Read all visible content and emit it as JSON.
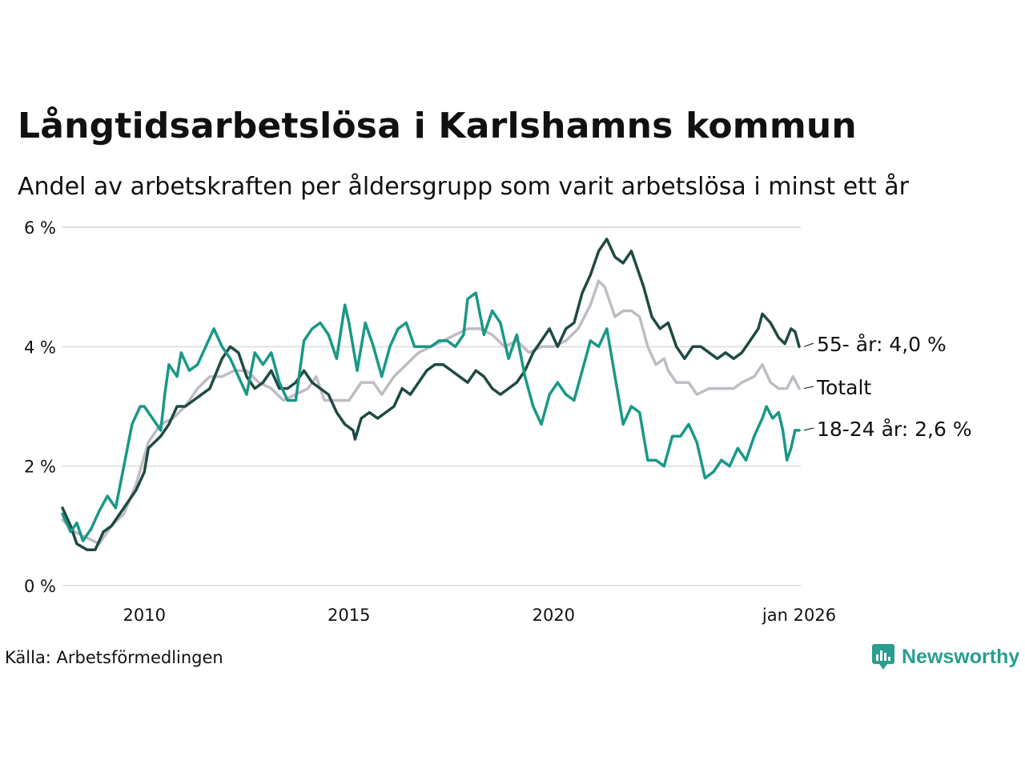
{
  "title": "Långtidsarbetslösa i Karlshamns kommun",
  "subtitle": "Andel av arbetskraften per åldersgrupp som varit arbetslösa i minst ett år",
  "source": "Källa: Arbetsförmedlingen",
  "brand": {
    "name": "Newsworthy",
    "icon": "newsworthy-logo-icon"
  },
  "colors": {
    "older": "#1f4a44",
    "total": "#bfbcc4",
    "youth": "#1a9886",
    "grid": "#e2e2e2",
    "text": "#111111"
  },
  "chart_data": {
    "type": "line",
    "title": "Långtidsarbetslösa i Karlshamns kommun",
    "x_range": [
      2008.0,
      2026.0
    ],
    "ylim": [
      0,
      6
    ],
    "grid": true,
    "y_ticks": [
      {
        "value": 0,
        "label": "0 %"
      },
      {
        "value": 2,
        "label": "2 %"
      },
      {
        "value": 4,
        "label": "4 %"
      },
      {
        "value": 6,
        "label": "6 %"
      }
    ],
    "x_ticks": [
      {
        "value": 2010,
        "label": "2010"
      },
      {
        "value": 2015,
        "label": "2015"
      },
      {
        "value": 2020,
        "label": "2020"
      },
      {
        "value": 2026,
        "label": "jan 2026"
      }
    ],
    "series": [
      {
        "key": "total",
        "name": "Totalt",
        "label": "Totalt",
        "points": [
          [
            2008.0,
            1.1
          ],
          [
            2008.3,
            0.9
          ],
          [
            2008.6,
            0.8
          ],
          [
            2008.9,
            0.7
          ],
          [
            2009.2,
            1.0
          ],
          [
            2009.5,
            1.2
          ],
          [
            2009.8,
            1.7
          ],
          [
            2010.1,
            2.4
          ],
          [
            2010.4,
            2.7
          ],
          [
            2010.7,
            2.8
          ],
          [
            2011.0,
            3.0
          ],
          [
            2011.3,
            3.3
          ],
          [
            2011.6,
            3.5
          ],
          [
            2011.9,
            3.5
          ],
          [
            2012.2,
            3.6
          ],
          [
            2012.5,
            3.6
          ],
          [
            2012.8,
            3.4
          ],
          [
            2013.1,
            3.3
          ],
          [
            2013.4,
            3.1
          ],
          [
            2013.7,
            3.2
          ],
          [
            2014.0,
            3.3
          ],
          [
            2014.2,
            3.5
          ],
          [
            2014.4,
            3.1
          ],
          [
            2014.7,
            3.1
          ],
          [
            2015.0,
            3.1
          ],
          [
            2015.3,
            3.4
          ],
          [
            2015.6,
            3.4
          ],
          [
            2015.8,
            3.2
          ],
          [
            2016.1,
            3.5
          ],
          [
            2016.4,
            3.7
          ],
          [
            2016.7,
            3.9
          ],
          [
            2017.0,
            4.0
          ],
          [
            2017.3,
            4.1
          ],
          [
            2017.6,
            4.2
          ],
          [
            2017.9,
            4.3
          ],
          [
            2018.2,
            4.3
          ],
          [
            2018.5,
            4.2
          ],
          [
            2018.8,
            4.0
          ],
          [
            2019.1,
            4.1
          ],
          [
            2019.4,
            3.9
          ],
          [
            2019.7,
            4.0
          ],
          [
            2020.0,
            4.0
          ],
          [
            2020.3,
            4.1
          ],
          [
            2020.6,
            4.3
          ],
          [
            2020.9,
            4.7
          ],
          [
            2021.1,
            5.1
          ],
          [
            2021.25,
            5.0
          ],
          [
            2021.5,
            4.5
          ],
          [
            2021.7,
            4.6
          ],
          [
            2021.9,
            4.6
          ],
          [
            2022.1,
            4.5
          ],
          [
            2022.3,
            4.0
          ],
          [
            2022.5,
            3.7
          ],
          [
            2022.7,
            3.8
          ],
          [
            2022.8,
            3.6
          ],
          [
            2023.0,
            3.4
          ],
          [
            2023.3,
            3.4
          ],
          [
            2023.5,
            3.2
          ],
          [
            2023.8,
            3.3
          ],
          [
            2024.1,
            3.3
          ],
          [
            2024.4,
            3.3
          ],
          [
            2024.6,
            3.4
          ],
          [
            2024.9,
            3.5
          ],
          [
            2025.1,
            3.7
          ],
          [
            2025.3,
            3.4
          ],
          [
            2025.5,
            3.3
          ],
          [
            2025.7,
            3.3
          ],
          [
            2025.85,
            3.5
          ],
          [
            2026.0,
            3.3
          ]
        ]
      },
      {
        "key": "older",
        "name": "55- år",
        "label": "55- år: 4,0 %",
        "latest": 4.0,
        "points": [
          [
            2008.0,
            1.3
          ],
          [
            2008.2,
            1.0
          ],
          [
            2008.35,
            0.7
          ],
          [
            2008.6,
            0.6
          ],
          [
            2008.8,
            0.6
          ],
          [
            2009.0,
            0.9
          ],
          [
            2009.2,
            1.0
          ],
          [
            2009.5,
            1.3
          ],
          [
            2009.8,
            1.6
          ],
          [
            2010.0,
            1.9
          ],
          [
            2010.1,
            2.3
          ],
          [
            2010.4,
            2.5
          ],
          [
            2010.6,
            2.7
          ],
          [
            2010.8,
            3.0
          ],
          [
            2011.0,
            3.0
          ],
          [
            2011.2,
            3.1
          ],
          [
            2011.4,
            3.2
          ],
          [
            2011.6,
            3.3
          ],
          [
            2011.9,
            3.8
          ],
          [
            2012.1,
            4.0
          ],
          [
            2012.3,
            3.9
          ],
          [
            2012.5,
            3.5
          ],
          [
            2012.7,
            3.3
          ],
          [
            2012.9,
            3.4
          ],
          [
            2013.1,
            3.6
          ],
          [
            2013.3,
            3.3
          ],
          [
            2013.5,
            3.3
          ],
          [
            2013.7,
            3.4
          ],
          [
            2013.9,
            3.6
          ],
          [
            2014.1,
            3.4
          ],
          [
            2014.3,
            3.3
          ],
          [
            2014.5,
            3.2
          ],
          [
            2014.7,
            2.9
          ],
          [
            2014.9,
            2.7
          ],
          [
            2015.1,
            2.6
          ],
          [
            2015.15,
            2.45
          ],
          [
            2015.3,
            2.8
          ],
          [
            2015.5,
            2.9
          ],
          [
            2015.7,
            2.8
          ],
          [
            2015.9,
            2.9
          ],
          [
            2016.1,
            3.0
          ],
          [
            2016.3,
            3.3
          ],
          [
            2016.5,
            3.2
          ],
          [
            2016.7,
            3.4
          ],
          [
            2016.9,
            3.6
          ],
          [
            2017.1,
            3.7
          ],
          [
            2017.3,
            3.7
          ],
          [
            2017.5,
            3.6
          ],
          [
            2017.7,
            3.5
          ],
          [
            2017.9,
            3.4
          ],
          [
            2018.1,
            3.6
          ],
          [
            2018.3,
            3.5
          ],
          [
            2018.5,
            3.3
          ],
          [
            2018.7,
            3.2
          ],
          [
            2018.9,
            3.3
          ],
          [
            2019.1,
            3.4
          ],
          [
            2019.3,
            3.6
          ],
          [
            2019.5,
            3.9
          ],
          [
            2019.7,
            4.1
          ],
          [
            2019.9,
            4.3
          ],
          [
            2020.1,
            4.0
          ],
          [
            2020.3,
            4.3
          ],
          [
            2020.5,
            4.4
          ],
          [
            2020.7,
            4.9
          ],
          [
            2020.9,
            5.2
          ],
          [
            2021.1,
            5.6
          ],
          [
            2021.3,
            5.8
          ],
          [
            2021.5,
            5.5
          ],
          [
            2021.7,
            5.4
          ],
          [
            2021.9,
            5.6
          ],
          [
            2022.0,
            5.4
          ],
          [
            2022.2,
            5.0
          ],
          [
            2022.4,
            4.5
          ],
          [
            2022.6,
            4.3
          ],
          [
            2022.8,
            4.4
          ],
          [
            2023.0,
            4.0
          ],
          [
            2023.2,
            3.8
          ],
          [
            2023.4,
            4.0
          ],
          [
            2023.6,
            4.0
          ],
          [
            2023.8,
            3.9
          ],
          [
            2024.0,
            3.8
          ],
          [
            2024.2,
            3.9
          ],
          [
            2024.4,
            3.8
          ],
          [
            2024.6,
            3.9
          ],
          [
            2024.8,
            4.1
          ],
          [
            2025.0,
            4.3
          ],
          [
            2025.1,
            4.55
          ],
          [
            2025.3,
            4.4
          ],
          [
            2025.5,
            4.15
          ],
          [
            2025.65,
            4.05
          ],
          [
            2025.8,
            4.3
          ],
          [
            2025.9,
            4.25
          ],
          [
            2026.0,
            4.0
          ]
        ]
      },
      {
        "key": "youth",
        "name": "18-24 år",
        "label": "18-24 år: 2,6 %",
        "latest": 2.6,
        "points": [
          [
            2008.0,
            1.2
          ],
          [
            2008.2,
            0.9
          ],
          [
            2008.35,
            1.05
          ],
          [
            2008.5,
            0.75
          ],
          [
            2008.7,
            0.95
          ],
          [
            2008.9,
            1.25
          ],
          [
            2009.1,
            1.5
          ],
          [
            2009.3,
            1.3
          ],
          [
            2009.5,
            2.0
          ],
          [
            2009.7,
            2.7
          ],
          [
            2009.9,
            3.0
          ],
          [
            2010.0,
            3.0
          ],
          [
            2010.2,
            2.8
          ],
          [
            2010.4,
            2.6
          ],
          [
            2010.5,
            3.2
          ],
          [
            2010.6,
            3.7
          ],
          [
            2010.8,
            3.5
          ],
          [
            2010.9,
            3.9
          ],
          [
            2011.1,
            3.6
          ],
          [
            2011.3,
            3.7
          ],
          [
            2011.5,
            4.0
          ],
          [
            2011.7,
            4.3
          ],
          [
            2011.9,
            4.0
          ],
          [
            2012.1,
            3.8
          ],
          [
            2012.3,
            3.5
          ],
          [
            2012.5,
            3.2
          ],
          [
            2012.7,
            3.9
          ],
          [
            2012.9,
            3.7
          ],
          [
            2013.1,
            3.9
          ],
          [
            2013.3,
            3.4
          ],
          [
            2013.5,
            3.1
          ],
          [
            2013.7,
            3.1
          ],
          [
            2013.9,
            4.1
          ],
          [
            2014.1,
            4.3
          ],
          [
            2014.3,
            4.4
          ],
          [
            2014.5,
            4.2
          ],
          [
            2014.7,
            3.8
          ],
          [
            2014.9,
            4.7
          ],
          [
            2015.0,
            4.4
          ],
          [
            2015.2,
            3.6
          ],
          [
            2015.4,
            4.4
          ],
          [
            2015.6,
            4.0
          ],
          [
            2015.8,
            3.5
          ],
          [
            2016.0,
            4.0
          ],
          [
            2016.2,
            4.3
          ],
          [
            2016.4,
            4.4
          ],
          [
            2016.6,
            4.0
          ],
          [
            2016.8,
            4.0
          ],
          [
            2017.0,
            4.0
          ],
          [
            2017.2,
            4.1
          ],
          [
            2017.4,
            4.1
          ],
          [
            2017.6,
            4.0
          ],
          [
            2017.8,
            4.2
          ],
          [
            2017.9,
            4.8
          ],
          [
            2018.1,
            4.9
          ],
          [
            2018.3,
            4.2
          ],
          [
            2018.5,
            4.6
          ],
          [
            2018.7,
            4.4
          ],
          [
            2018.9,
            3.8
          ],
          [
            2019.1,
            4.2
          ],
          [
            2019.3,
            3.5
          ],
          [
            2019.5,
            3.0
          ],
          [
            2019.7,
            2.7
          ],
          [
            2019.9,
            3.2
          ],
          [
            2020.1,
            3.4
          ],
          [
            2020.3,
            3.2
          ],
          [
            2020.5,
            3.1
          ],
          [
            2020.7,
            3.6
          ],
          [
            2020.9,
            4.1
          ],
          [
            2021.1,
            4.0
          ],
          [
            2021.3,
            4.3
          ],
          [
            2021.5,
            3.5
          ],
          [
            2021.7,
            2.7
          ],
          [
            2021.9,
            3.0
          ],
          [
            2022.1,
            2.9
          ],
          [
            2022.3,
            2.1
          ],
          [
            2022.5,
            2.1
          ],
          [
            2022.7,
            2.0
          ],
          [
            2022.9,
            2.5
          ],
          [
            2023.1,
            2.5
          ],
          [
            2023.3,
            2.7
          ],
          [
            2023.5,
            2.4
          ],
          [
            2023.7,
            1.8
          ],
          [
            2023.9,
            1.9
          ],
          [
            2024.1,
            2.1
          ],
          [
            2024.3,
            2.0
          ],
          [
            2024.5,
            2.3
          ],
          [
            2024.7,
            2.1
          ],
          [
            2024.9,
            2.5
          ],
          [
            2025.1,
            2.8
          ],
          [
            2025.2,
            3.0
          ],
          [
            2025.35,
            2.8
          ],
          [
            2025.5,
            2.9
          ],
          [
            2025.6,
            2.6
          ],
          [
            2025.7,
            2.1
          ],
          [
            2025.8,
            2.3
          ],
          [
            2025.9,
            2.6
          ],
          [
            2026.0,
            2.6
          ]
        ]
      }
    ]
  }
}
